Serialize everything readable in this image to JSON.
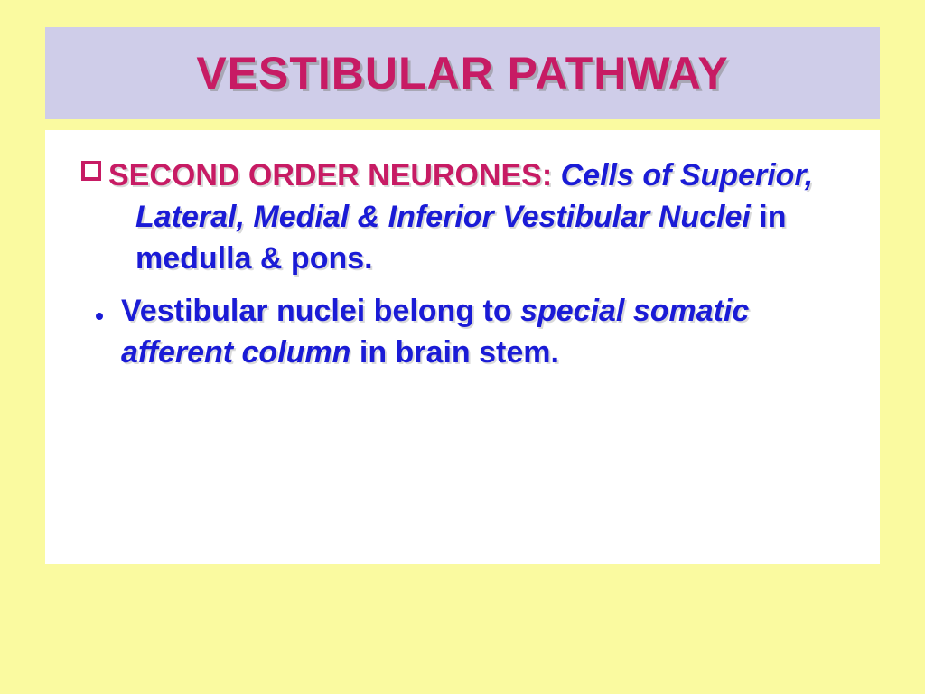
{
  "slide": {
    "title": "VESTIBULAR PATHWAY",
    "title_color": "#c71b64",
    "title_bg": "#cfcde9",
    "page_bg": "#fafaa0",
    "content_bg": "#ffffff",
    "text_color": "#1a1bd6",
    "bullet1": {
      "heading": "SECOND ORDER NEURONES:",
      "heading_color": "#c71b64",
      "italic_part": " Cells of Superior, Lateral, Medial & Inferior Vestibular Nuclei",
      "tail": " in medulla & pons."
    },
    "bullet2": {
      "lead": "Vestibular nuclei belong to ",
      "italic_part": "special somatic afferent column",
      "tail": " in brain stem."
    },
    "fonts": {
      "title_size_pt": 40,
      "body_size_pt": 26,
      "family": "Arial"
    }
  }
}
